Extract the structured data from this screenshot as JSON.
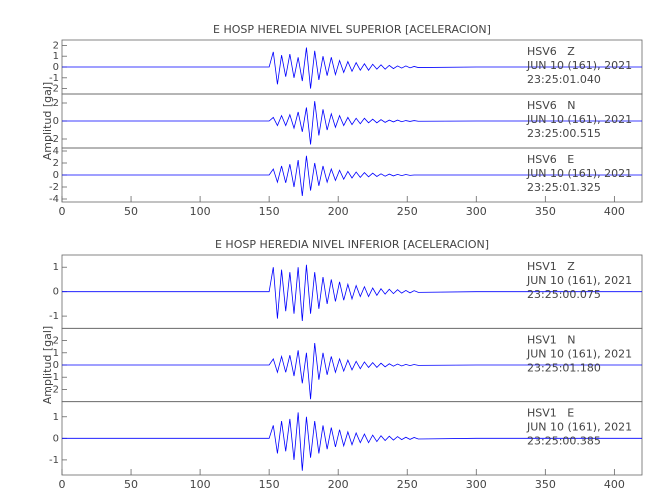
{
  "chart_data": [
    {
      "type": "line",
      "title": "E HOSP HEREDIA NIVEL SUPERIOR [ACELERACION]",
      "ylabel": "Amplitud [gal]",
      "xlim": [
        0,
        420
      ],
      "xticks": [
        0,
        50,
        100,
        150,
        200,
        250,
        300,
        350,
        400
      ],
      "color": "#0000ff",
      "x": [
        0,
        150,
        153,
        156,
        159,
        162,
        165,
        168,
        171,
        174,
        177,
        180,
        183,
        186,
        189,
        192,
        195,
        198,
        201,
        204,
        207,
        210,
        213,
        216,
        219,
        222,
        225,
        228,
        231,
        234,
        237,
        240,
        243,
        246,
        249,
        252,
        255,
        258,
        300,
        420
      ],
      "series": [
        {
          "name": "HSV6   Z",
          "date": "JUN 10 (161), 2021",
          "time": "23:25:01.040",
          "ylim": [
            -2.5,
            2.5
          ],
          "yticks": [
            -2,
            -1,
            0,
            1,
            2
          ],
          "values": [
            0,
            0,
            1.4,
            -1.6,
            1.1,
            -0.9,
            1.2,
            -1.0,
            0.9,
            -1.3,
            1.8,
            -2.0,
            1.5,
            -1.2,
            1.0,
            -0.8,
            0.9,
            -0.7,
            0.6,
            -0.5,
            0.5,
            -0.4,
            0.4,
            -0.3,
            0.3,
            -0.3,
            0.25,
            -0.2,
            0.2,
            -0.2,
            0.15,
            -0.15,
            0.1,
            -0.1,
            0.1,
            -0.08,
            0.05,
            -0.05,
            0,
            0
          ]
        },
        {
          "name": "HSV6   N",
          "date": "JUN 10 (161), 2021",
          "time": "23:25:00.515",
          "ylim": [
            -3,
            3
          ],
          "yticks": [
            -2,
            0,
            2
          ],
          "values": [
            0,
            0,
            0.4,
            -0.5,
            0.6,
            -0.5,
            0.7,
            -0.8,
            1.0,
            -1.2,
            1.5,
            -2.6,
            2.2,
            -1.6,
            1.3,
            -1.0,
            0.8,
            -0.7,
            0.6,
            -0.5,
            0.4,
            -0.4,
            0.3,
            -0.3,
            0.3,
            -0.2,
            0.2,
            -0.2,
            0.15,
            -0.15,
            0.1,
            -0.1,
            0.1,
            -0.08,
            0.05,
            -0.05,
            0.05,
            -0.03,
            0,
            0
          ]
        },
        {
          "name": "HSV6   E",
          "date": "JUN 10 (161), 2021",
          "time": "23:25:01.325",
          "ylim": [
            -4.5,
            4.5
          ],
          "yticks": [
            -4,
            -2,
            0,
            2,
            4
          ],
          "values": [
            0,
            0,
            1.0,
            -1.2,
            1.5,
            -1.3,
            1.8,
            -2.0,
            2.5,
            -3.5,
            3.2,
            -2.6,
            2.0,
            -1.8,
            1.5,
            -1.2,
            1.0,
            -0.9,
            0.8,
            -0.7,
            0.6,
            -0.5,
            0.5,
            -0.4,
            0.4,
            -0.3,
            0.3,
            -0.25,
            0.2,
            -0.2,
            0.15,
            -0.15,
            0.1,
            -0.1,
            0.08,
            -0.06,
            0,
            0,
            0,
            0
          ]
        }
      ]
    },
    {
      "type": "line",
      "title": "E HOSP HEREDIA NIVEL INFERIOR [ACELERACION]",
      "ylabel": "Amplitud [gal]",
      "xlim": [
        0,
        420
      ],
      "xticks": [
        0,
        50,
        100,
        150,
        200,
        250,
        300,
        350,
        400
      ],
      "color": "#0000ff",
      "x": [
        0,
        150,
        153,
        156,
        159,
        162,
        165,
        168,
        171,
        174,
        177,
        180,
        183,
        186,
        189,
        192,
        195,
        198,
        201,
        204,
        207,
        210,
        213,
        216,
        219,
        222,
        225,
        228,
        231,
        234,
        237,
        240,
        243,
        246,
        249,
        252,
        255,
        258,
        300,
        420
      ],
      "series": [
        {
          "name": "HSV1   Z",
          "date": "JUN 10 (161), 2021",
          "time": "23:25:00.075",
          "ylim": [
            -1.5,
            1.5
          ],
          "yticks": [
            -1,
            0,
            1
          ],
          "values": [
            0,
            0,
            1.0,
            -1.1,
            0.9,
            -0.8,
            0.8,
            -0.9,
            1.0,
            -1.2,
            1.1,
            -0.9,
            0.8,
            -0.7,
            0.6,
            -0.5,
            0.5,
            -0.4,
            0.4,
            -0.35,
            0.3,
            -0.3,
            0.25,
            -0.2,
            0.2,
            -0.2,
            0.15,
            -0.15,
            0.12,
            -0.1,
            0.1,
            -0.08,
            0.08,
            -0.06,
            0.05,
            -0.05,
            0.04,
            -0.03,
            0,
            0
          ]
        },
        {
          "name": "HSV1   N",
          "date": "JUN 10 (161), 2021",
          "time": "23:25:01.180",
          "ylim": [
            -3,
            3
          ],
          "yticks": [
            -2,
            -1,
            0,
            1,
            2
          ],
          "values": [
            0,
            0,
            0.5,
            -0.6,
            0.7,
            -0.6,
            0.8,
            -0.9,
            1.2,
            -1.5,
            1.0,
            -2.8,
            1.8,
            -1.2,
            1.0,
            -0.8,
            0.7,
            -0.6,
            0.5,
            -0.5,
            0.4,
            -0.4,
            0.3,
            -0.3,
            0.25,
            -0.2,
            0.2,
            -0.2,
            0.15,
            -0.15,
            0.1,
            -0.1,
            0.08,
            -0.08,
            0.05,
            -0.05,
            0.04,
            -0.03,
            0,
            0
          ]
        },
        {
          "name": "HSV1   E",
          "date": "JUN 10 (161), 2021",
          "time": "23:25:00.385",
          "ylim": [
            -1.7,
            1.7
          ],
          "yticks": [
            -1,
            0,
            1
          ],
          "values": [
            0,
            0,
            0.6,
            -0.7,
            0.8,
            -0.6,
            0.9,
            -1.0,
            1.2,
            -1.5,
            1.0,
            -0.9,
            0.8,
            -0.7,
            0.6,
            -0.5,
            0.5,
            -0.4,
            0.4,
            -0.35,
            0.3,
            -0.3,
            0.25,
            -0.2,
            0.2,
            -0.2,
            0.15,
            -0.15,
            0.12,
            -0.1,
            0.1,
            -0.08,
            0.08,
            -0.06,
            0.05,
            -0.05,
            0.04,
            -0.03,
            0,
            0
          ]
        }
      ]
    }
  ]
}
